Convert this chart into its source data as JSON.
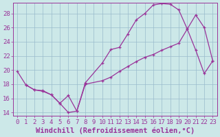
{
  "xlabel": "Windchill (Refroidissement éolien,°C)",
  "background_color": "#cce8e8",
  "grid_color": "#99bbcc",
  "line_color": "#993399",
  "xlim": [
    -0.5,
    23.5
  ],
  "ylim": [
    13.5,
    29.5
  ],
  "xticks": [
    0,
    1,
    2,
    3,
    4,
    5,
    6,
    7,
    8,
    9,
    10,
    11,
    12,
    13,
    14,
    15,
    16,
    17,
    18,
    19,
    20,
    21,
    22,
    23
  ],
  "yticks": [
    14,
    16,
    18,
    20,
    22,
    24,
    26,
    28
  ],
  "curve1_x": [
    0,
    1,
    2,
    3,
    4,
    5,
    6,
    7,
    8,
    10,
    11,
    12,
    13,
    14,
    15,
    16,
    17,
    18,
    19,
    20,
    21,
    22,
    23
  ],
  "curve1_y": [
    19.8,
    17.9,
    17.2,
    17.1,
    16.5,
    15.3,
    14.0,
    14.2,
    18.2,
    21.0,
    22.9,
    23.2,
    25.1,
    27.1,
    28.0,
    29.2,
    29.4,
    29.3,
    28.5,
    25.8,
    22.8,
    19.5,
    21.3
  ],
  "curve2_x": [
    1,
    2,
    3,
    4,
    5,
    6,
    7,
    8,
    10,
    11,
    12,
    13,
    14,
    15,
    16,
    17,
    18,
    19,
    20,
    21,
    22,
    23
  ],
  "curve2_y": [
    17.9,
    17.2,
    17.0,
    16.5,
    15.3,
    16.4,
    14.2,
    18.0,
    18.5,
    19.0,
    19.8,
    20.5,
    21.2,
    21.8,
    22.2,
    22.8,
    23.3,
    23.8,
    25.8,
    27.8,
    26.0,
    21.3
  ],
  "font_color": "#993399",
  "tick_fontsize": 6.5,
  "label_fontsize": 7.5
}
